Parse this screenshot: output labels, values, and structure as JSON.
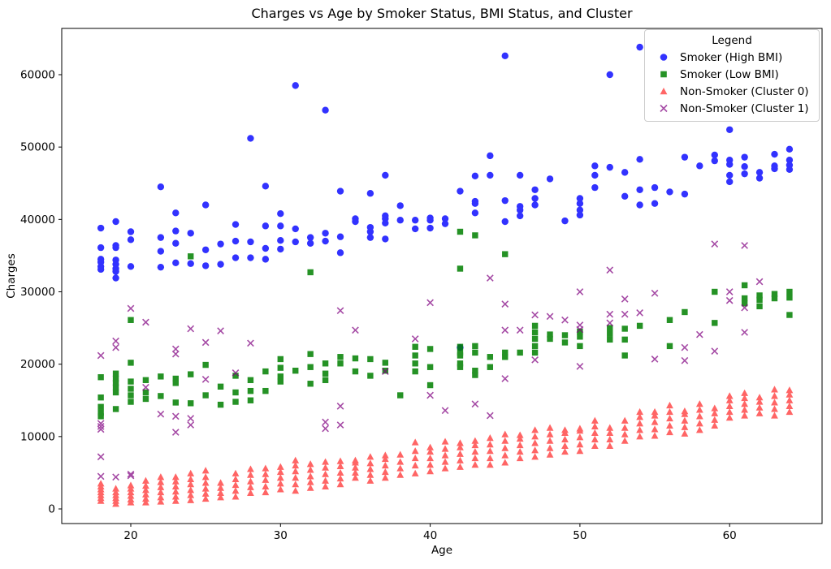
{
  "chart_data": {
    "type": "scatter",
    "title": "Charges vs Age by Smoker Status, BMI Status, and Cluster",
    "xlabel": "Age",
    "ylabel": "Charges",
    "legend_title": "Legend",
    "x_ticks": [
      20,
      30,
      40,
      50,
      60
    ],
    "y_ticks": [
      0,
      10000,
      20000,
      30000,
      40000,
      50000,
      60000
    ],
    "xlim": [
      15.4,
      66.2
    ],
    "ylim": [
      -2000,
      66900
    ],
    "grid": false,
    "legend_position": "upper right",
    "series": [
      {
        "name": "Smoker (High BMI)",
        "marker": "circle",
        "color": "#0000ff",
        "opacity": 0.8,
        "by_age": {
          "18": [
            38800,
            36100,
            34500,
            34100,
            33500,
            33100
          ],
          "19": [
            39700,
            36400,
            36100,
            34400,
            33800,
            33200,
            32800,
            31900
          ],
          "20": [
            38300,
            37200,
            33500
          ],
          "22": [
            44500,
            37500,
            35600,
            33400
          ],
          "23": [
            40900,
            38400,
            36700,
            34000
          ],
          "24": [
            38100,
            33900
          ],
          "25": [
            42000,
            35800,
            33600
          ],
          "26": [
            36600,
            33800
          ],
          "27": [
            39300,
            37000,
            34700
          ],
          "28": [
            51200,
            36900,
            34700
          ],
          "29": [
            44600,
            39100,
            36000,
            34500
          ],
          "30": [
            40800,
            39100,
            37100,
            35900
          ],
          "31": [
            58500,
            38700,
            36900
          ],
          "32": [
            37500,
            36700
          ],
          "33": [
            55100,
            38100,
            37000
          ],
          "34": [
            43900,
            37600,
            35400
          ],
          "35": [
            40100,
            39700
          ],
          "36": [
            43600,
            38900,
            38300,
            37500
          ],
          "37": [
            46100,
            40500,
            40100,
            39500,
            37300
          ],
          "38": [
            41900,
            39900
          ],
          "39": [
            39900,
            38700
          ],
          "40": [
            40200,
            39900,
            38800
          ],
          "41": [
            40100,
            39400
          ],
          "42": [
            43900,
            22300
          ],
          "43": [
            46000,
            42500,
            42200,
            40900
          ],
          "44": [
            48800,
            46100
          ],
          "45": [
            62600,
            42600,
            39700
          ],
          "46": [
            46100,
            41800,
            41300,
            40500
          ],
          "47": [
            44100,
            42900,
            42000
          ],
          "48": [
            45600
          ],
          "49": [
            39800
          ],
          "50": [
            42900,
            42200,
            41300,
            40600
          ],
          "51": [
            47400,
            46100,
            44400
          ],
          "52": [
            60000,
            47200
          ],
          "53": [
            46500,
            43200
          ],
          "54": [
            63800,
            48300,
            44100,
            42000
          ],
          "55": [
            44400,
            42200
          ],
          "56": [
            43800
          ],
          "57": [
            48600,
            43500
          ],
          "58": [
            47400
          ],
          "59": [
            48900,
            48100
          ],
          "60": [
            52400,
            48200,
            47600,
            46100,
            45200
          ],
          "61": [
            48600,
            47300,
            46300
          ],
          "62": [
            46500,
            45700
          ],
          "63": [
            49000,
            47400,
            47000
          ],
          "64": [
            49700,
            48200,
            47500,
            46900
          ]
        }
      },
      {
        "name": "Smoker (Low BMI)",
        "marker": "square",
        "color": "#008000",
        "opacity": 0.85,
        "by_age": {
          "18": [
            18200,
            15400,
            14100,
            13300,
            12800
          ],
          "19": [
            18700,
            18000,
            17400,
            16800,
            16100,
            13800
          ],
          "20": [
            26100,
            20200,
            17600,
            16600,
            15700,
            14800
          ],
          "21": [
            17800,
            16100,
            15200
          ],
          "22": [
            18300,
            15600
          ],
          "23": [
            18000,
            17400,
            14700
          ],
          "24": [
            34900,
            18600,
            14600
          ],
          "25": [
            19900,
            15700
          ],
          "26": [
            16900,
            14400
          ],
          "27": [
            18400,
            16100,
            14800
          ],
          "28": [
            17800,
            16300,
            15000
          ],
          "29": [
            19000,
            16300
          ],
          "30": [
            20700,
            19500,
            18300,
            17600
          ],
          "31": [
            19100
          ],
          "32": [
            32700,
            21400,
            19600,
            17300
          ],
          "33": [
            20100,
            18700,
            17800
          ],
          "34": [
            21000,
            20100
          ],
          "35": [
            20800,
            19000
          ],
          "36": [
            20700,
            18400
          ],
          "37": [
            20200,
            19100
          ],
          "38": [
            15700
          ],
          "39": [
            22400,
            21200,
            20100,
            19000
          ],
          "40": [
            22100,
            19600,
            17100
          ],
          "42": [
            38300,
            33200,
            22400,
            21600,
            21200,
            20100,
            19600
          ],
          "43": [
            37800,
            22500,
            21600,
            19100,
            18500
          ],
          "44": [
            21000,
            19600
          ],
          "45": [
            35200,
            21600,
            21000
          ],
          "46": [
            21600
          ],
          "47": [
            25300,
            24400,
            23500,
            22500,
            21600
          ],
          "48": [
            24100,
            23500
          ],
          "49": [
            24000,
            23000
          ],
          "50": [
            24500,
            23800,
            22500
          ],
          "52": [
            25000,
            24200,
            23400
          ],
          "53": [
            24900,
            23400,
            21200
          ],
          "54": [
            25300
          ],
          "56": [
            26100,
            22500
          ],
          "57": [
            27200
          ],
          "59": [
            30000,
            25700
          ],
          "61": [
            30900,
            29100,
            28400
          ],
          "62": [
            29500,
            28900,
            28000
          ],
          "63": [
            29700,
            29100
          ],
          "64": [
            30000,
            29200,
            26800
          ]
        }
      },
      {
        "name": "Non-Smoker (Cluster 0)",
        "marker": "triangle",
        "color": "#ff0000",
        "opacity": 0.6,
        "by_age": {
          "18": [
            1100,
            1500,
            1900,
            2300,
            2700,
            3100,
            3500
          ],
          "19": [
            700,
            1100,
            1500,
            1900,
            2300,
            2800
          ],
          "20": [
            900,
            1300,
            1800,
            2300,
            2800,
            3250
          ],
          "21": [
            900,
            1400,
            2000,
            2600,
            3200,
            3900
          ],
          "22": [
            1000,
            1600,
            2300,
            3000,
            3700,
            4400
          ],
          "23": [
            1100,
            1700,
            2400,
            3100,
            3800,
            4400
          ],
          "24": [
            1200,
            1900,
            2600,
            3400,
            4100,
            4900
          ],
          "25": [
            1400,
            2100,
            2800,
            3600,
            4400,
            5300
          ],
          "26": [
            1600,
            2200,
            2900,
            3600
          ],
          "27": [
            1700,
            2500,
            3300,
            4100,
            4900
          ],
          "28": [
            2200,
            3000,
            3800,
            4700,
            5500
          ],
          "29": [
            2300,
            3100,
            4000,
            4800,
            5600
          ],
          "30": [
            2700,
            3500,
            4300,
            5100,
            5800
          ],
          "31": [
            2500,
            3400,
            4300,
            5200,
            6000,
            6700
          ],
          "32": [
            2900,
            3700,
            4500,
            5400,
            6200
          ],
          "33": [
            3100,
            3900,
            4800,
            5700,
            6500
          ],
          "34": [
            3400,
            4200,
            5000,
            5900,
            6600
          ],
          "35": [
            4300,
            5000,
            5700,
            6400,
            6700
          ],
          "36": [
            3900,
            4700,
            5500,
            6300,
            7200
          ],
          "37": [
            4300,
            5100,
            6000,
            6900,
            7400
          ],
          "38": [
            4700,
            5600,
            6500,
            7500
          ],
          "39": [
            4900,
            6000,
            7000,
            8000,
            9200
          ],
          "40": [
            5200,
            6100,
            7000,
            7900,
            8500
          ],
          "41": [
            5600,
            6500,
            7400,
            8300,
            9300
          ],
          "42": [
            5800,
            6700,
            7600,
            8500,
            9100
          ],
          "43": [
            6100,
            7000,
            7900,
            8800,
            9400
          ],
          "44": [
            6100,
            7000,
            8000,
            8900,
            9800
          ],
          "45": [
            6400,
            7400,
            8400,
            9400,
            10300
          ],
          "46": [
            7000,
            7900,
            8800,
            9700,
            10200
          ],
          "47": [
            7200,
            8100,
            9100,
            10000,
            10900
          ],
          "48": [
            7500,
            8400,
            9400,
            10300,
            11200
          ],
          "49": [
            7900,
            8700,
            9600,
            10500,
            10900
          ],
          "50": [
            8000,
            8900,
            9900,
            10800,
            11100
          ],
          "51": [
            8700,
            9600,
            10500,
            11400,
            12200
          ],
          "52": [
            8700,
            9600,
            10500,
            11200
          ],
          "53": [
            9400,
            10300,
            11200,
            12200
          ],
          "54": [
            10000,
            10900,
            11800,
            12700,
            13400
          ],
          "55": [
            10100,
            11000,
            12000,
            12900,
            13400
          ],
          "56": [
            10600,
            11500,
            12500,
            13400,
            14300
          ],
          "57": [
            10400,
            11300,
            12200,
            13100,
            13500
          ],
          "58": [
            10900,
            11800,
            12800,
            13700,
            14500
          ],
          "59": [
            11500,
            12300,
            13200,
            13900
          ],
          "60": [
            12600,
            13400,
            14200,
            15000,
            15600
          ],
          "61": [
            12900,
            13700,
            14500,
            15300,
            16000
          ],
          "62": [
            13200,
            14000,
            14800,
            15400
          ],
          "63": [
            12900,
            13800,
            14700,
            15600,
            16500
          ],
          "64": [
            13400,
            14200,
            15000,
            15800,
            16400
          ]
        }
      },
      {
        "name": "Non-Smoker (Cluster 1)",
        "marker": "x",
        "color": "#800080",
        "opacity": 0.7,
        "by_age": {
          "18": [
            21200,
            11800,
            11400,
            11000,
            7200,
            4500
          ],
          "19": [
            23200,
            22300,
            4400
          ],
          "20": [
            27700,
            4800,
            4600
          ],
          "21": [
            25800,
            16800
          ],
          "22": [
            13100
          ],
          "23": [
            22100,
            21400,
            12800,
            10600
          ],
          "24": [
            24900,
            12500,
            11600
          ],
          "25": [
            23000,
            17900
          ],
          "26": [
            24600
          ],
          "27": [
            18800
          ],
          "28": [
            22900
          ],
          "33": [
            12000,
            11100
          ],
          "34": [
            27400,
            14200,
            11600
          ],
          "35": [
            24700
          ],
          "37": [
            19000
          ],
          "39": [
            23500
          ],
          "40": [
            28500,
            15700
          ],
          "41": [
            13600
          ],
          "43": [
            14500
          ],
          "44": [
            31900,
            12900
          ],
          "45": [
            28300,
            24700,
            18000
          ],
          "46": [
            24700
          ],
          "47": [
            26800,
            20600
          ],
          "48": [
            26600
          ],
          "49": [
            26100
          ],
          "50": [
            30000,
            25400,
            24800,
            19700
          ],
          "52": [
            33000,
            26900,
            25700
          ],
          "53": [
            29000,
            26900
          ],
          "54": [
            27100
          ],
          "55": [
            29800,
            20700
          ],
          "57": [
            22300,
            20500
          ],
          "58": [
            24100
          ],
          "59": [
            36600,
            21800
          ],
          "60": [
            30000,
            28800
          ],
          "61": [
            36400,
            27800,
            24400
          ],
          "62": [
            31400
          ]
        }
      }
    ]
  }
}
